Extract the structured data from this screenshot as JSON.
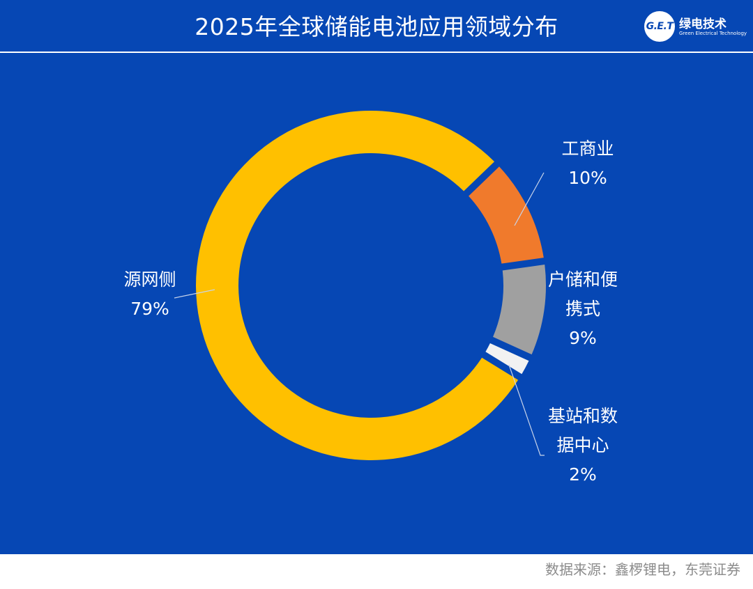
{
  "header": {
    "title": "2025年全球储能电池应用领域分布",
    "logo_mark": "G.E.T",
    "logo_name": "绿电技术",
    "logo_subtitle": "Green Electrical Technology"
  },
  "chart_data": {
    "type": "pie",
    "donut": true,
    "title": "2025年全球储能电池应用领域分布",
    "categories": [
      "源网侧",
      "工商业",
      "户储和便携式",
      "基站和数据中心"
    ],
    "values": [
      79,
      10,
      9,
      2
    ],
    "value_labels": [
      "79%",
      "10%",
      "9%",
      "2%"
    ],
    "colors": [
      "#ffc000",
      "#f07a2c",
      "#a0a0a0",
      "#f2f2f2"
    ],
    "label_lines": [
      [
        "源网侧"
      ],
      [
        "工商业"
      ],
      [
        "户储和便",
        "携式"
      ],
      [
        "基站和数",
        "据中心"
      ]
    ],
    "legend": "none"
  },
  "footer": {
    "source": "数据来源：鑫椤锂电，东莞证券"
  },
  "colors": {
    "background": "#0647b4",
    "text": "#ffffff",
    "source_text": "#8b8b8b"
  }
}
